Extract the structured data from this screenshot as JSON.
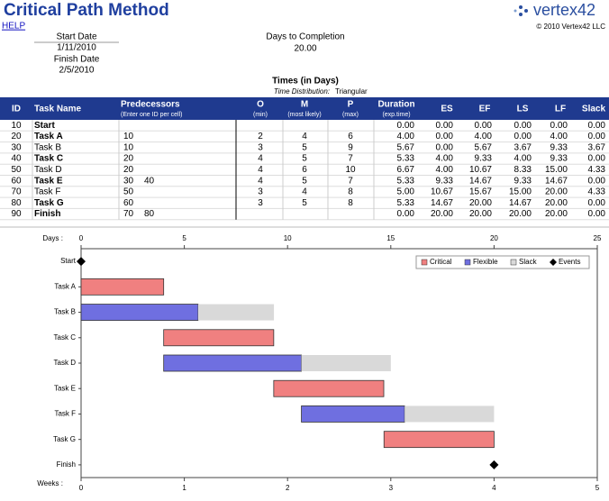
{
  "header": {
    "title": "Critical Path Method",
    "help": "HELP",
    "start_date_label": "Start Date",
    "start_date": "1/11/2010",
    "finish_date_label": "Finish Date",
    "finish_date": "2/5/2010",
    "days_label": "Days to Completion",
    "days": "20.00",
    "logo": "vertex42",
    "copyright": "© 2010 Vertex42 LLC",
    "times_label": "Times (in Days)",
    "distribution_label": "Time Distribution:",
    "distribution": "Triangular"
  },
  "table": {
    "headers": [
      "ID",
      "Task Name",
      "Predecessors",
      "O",
      "M",
      "P",
      "Duration",
      "ES",
      "EF",
      "LS",
      "LF",
      "Slack"
    ],
    "subheaders": [
      null,
      null,
      "(Enter one ID per cell)",
      "(min)",
      "(most likely)",
      "(max)",
      "(exp.time)",
      null,
      null,
      null,
      null,
      null
    ],
    "rows": [
      [
        "10",
        "Start",
        null,
        null,
        null,
        null,
        null,
        "0.00",
        "0.00",
        "0.00",
        "0.00",
        "0.00",
        "0.00"
      ],
      [
        "20",
        "Task A",
        "10",
        null,
        "2",
        "4",
        "6",
        "4.00",
        "0.00",
        "4.00",
        "0.00",
        "4.00",
        "0.00"
      ],
      [
        "30",
        "Task B",
        "10",
        null,
        "3",
        "5",
        "9",
        "5.67",
        "0.00",
        "5.67",
        "3.67",
        "9.33",
        "3.67"
      ],
      [
        "40",
        "Task C",
        "20",
        null,
        "4",
        "5",
        "7",
        "5.33",
        "4.00",
        "9.33",
        "4.00",
        "9.33",
        "0.00"
      ],
      [
        "50",
        "Task D",
        "20",
        null,
        "4",
        "6",
        "10",
        "6.67",
        "4.00",
        "10.67",
        "8.33",
        "15.00",
        "4.33"
      ],
      [
        "60",
        "Task E",
        "30",
        "40",
        "4",
        "5",
        "7",
        "5.33",
        "9.33",
        "14.67",
        "9.33",
        "14.67",
        "0.00"
      ],
      [
        "70",
        "Task F",
        "50",
        null,
        "3",
        "4",
        "8",
        "5.00",
        "10.67",
        "15.67",
        "15.00",
        "20.00",
        "4.33"
      ],
      [
        "80",
        "Task G",
        "60",
        null,
        "3",
        "5",
        "8",
        "5.33",
        "14.67",
        "20.00",
        "14.67",
        "20.00",
        "0.00"
      ],
      [
        "90",
        "Finish",
        "70",
        "80",
        null,
        null,
        null,
        "0.00",
        "20.00",
        "20.00",
        "20.00",
        "20.00",
        "0.00"
      ]
    ]
  },
  "chart_data": {
    "type": "gantt",
    "xlabel": "Days :",
    "x2label": "Weeks :",
    "categories": [
      "Start",
      "Task A",
      "Task B",
      "Task C",
      "Task D",
      "Task E",
      "Task F",
      "Task G",
      "Finish"
    ],
    "es": [
      0,
      0,
      0,
      4,
      4,
      9.33,
      10.67,
      14.67,
      20
    ],
    "series": [
      {
        "name": "Critical",
        "color": "#f08080",
        "values": [
          null,
          4,
          null,
          5.33,
          null,
          5.33,
          null,
          5.33,
          null
        ]
      },
      {
        "name": "Flexible",
        "color": "#6f6fe0",
        "values": [
          null,
          null,
          5.67,
          null,
          6.67,
          null,
          5,
          null,
          null
        ]
      },
      {
        "name": "Slack",
        "color": "#d9d9d9",
        "values": [
          null,
          null,
          3.67,
          null,
          4.33,
          null,
          4.33,
          null,
          null
        ]
      },
      {
        "name": "Events",
        "color": "#000000",
        "type": "event",
        "values": [
          0,
          null,
          null,
          null,
          null,
          null,
          null,
          null,
          20
        ]
      }
    ],
    "xlim": [
      0,
      25
    ],
    "xticks": [
      0,
      5,
      10,
      15,
      20,
      25
    ],
    "x2lim": [
      0,
      5
    ],
    "x2ticks": [
      0,
      1,
      2,
      3,
      4,
      5
    ]
  }
}
